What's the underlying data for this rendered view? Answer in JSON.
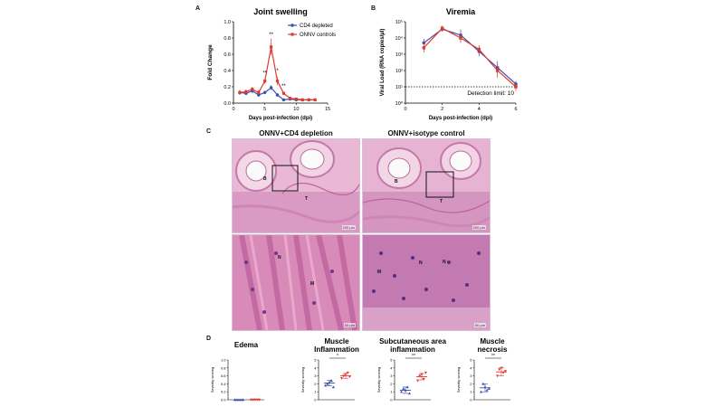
{
  "panels": {
    "a_label": "A",
    "b_label": "B",
    "c_label": "C",
    "d_label": "D"
  },
  "histology": {
    "left_title": "ONNV+CD4 depletion",
    "right_title": "ONNV+isotype control",
    "labels": {
      "B": "B",
      "T": "T",
      "M": "M",
      "N": "N"
    },
    "scale_top": "200 µm",
    "scale_bottom": "50 µm"
  },
  "chart_data": [
    {
      "id": "joint-swelling",
      "type": "line",
      "title": "Joint swelling",
      "xlabel": "Days post-infection (dpi)",
      "ylabel": "Fold Change",
      "xlim": [
        0,
        15
      ],
      "ylim": [
        0,
        1.0
      ],
      "xticks": [
        0,
        5,
        10,
        15
      ],
      "yticks": [
        0.0,
        0.2,
        0.4,
        0.6,
        0.8,
        1.0
      ],
      "legend_position": "top-right",
      "x": [
        1,
        2,
        3,
        4,
        5,
        6,
        7,
        8,
        9,
        10,
        11,
        12,
        13
      ],
      "series": [
        {
          "name": "CD4 depleted",
          "color": "#3b4fa8",
          "marker": "circle",
          "values": [
            0.13,
            0.12,
            0.15,
            0.1,
            0.13,
            0.19,
            0.1,
            0.04,
            0.05,
            0.04,
            0.04,
            0.04,
            0.04
          ],
          "errors": [
            0.03,
            0.02,
            0.03,
            0.02,
            0.02,
            0.03,
            0.02,
            0.01,
            0.01,
            0.01,
            0.01,
            0.01,
            0.01
          ]
        },
        {
          "name": "ONNV controls",
          "color": "#e0392e",
          "marker": "square",
          "values": [
            0.13,
            0.14,
            0.17,
            0.13,
            0.27,
            0.69,
            0.27,
            0.12,
            0.06,
            0.05,
            0.04,
            0.04,
            0.04
          ],
          "errors": [
            0.03,
            0.03,
            0.03,
            0.03,
            0.03,
            0.1,
            0.05,
            0.02,
            0.01,
            0.01,
            0.01,
            0.01,
            0.01
          ]
        }
      ],
      "annotations": [
        {
          "x": 5,
          "y": 0.35,
          "text": "**"
        },
        {
          "x": 6,
          "y": 0.82,
          "text": "**"
        },
        {
          "x": 7,
          "y": 0.38,
          "text": "*"
        },
        {
          "x": 8,
          "y": 0.19,
          "text": "**"
        }
      ]
    },
    {
      "id": "viremia",
      "type": "line",
      "title": "Viremia",
      "xlabel": "Days post-infection (dpi)",
      "ylabel": "Viral Load (RNA copies/µl)",
      "log_scale_y": true,
      "xlim": [
        0,
        6
      ],
      "ylim": [
        1,
        100000
      ],
      "xticks": [
        0,
        2,
        4,
        6
      ],
      "ytick_labels": [
        "10⁰",
        "10¹",
        "10²",
        "10³",
        "10⁴",
        "10⁵"
      ],
      "x": [
        1,
        2,
        3,
        4,
        5,
        6
      ],
      "series": [
        {
          "name": "CD4 depleted",
          "color": "#3b4fa8",
          "marker": "circle",
          "values": [
            5000,
            35000,
            15000,
            1500,
            150,
            15
          ],
          "errors_log": [
            0.25,
            0.15,
            0.35,
            0.3,
            0.4,
            0.2
          ]
        },
        {
          "name": "ONNV controls",
          "color": "#e0392e",
          "marker": "square",
          "values": [
            2500,
            40000,
            10000,
            2000,
            100,
            10
          ],
          "errors_log": [
            0.3,
            0.15,
            0.3,
            0.25,
            0.45,
            0.25
          ]
        }
      ],
      "reference_line": {
        "y": 10,
        "label": "Detection limit: 10"
      }
    },
    {
      "id": "edema",
      "type": "scatter",
      "title": "Edema",
      "ylabel": "Severity scoring",
      "ylim": [
        0,
        1.0
      ],
      "ytick_labels": [
        "0.0",
        "0.2",
        "0.4",
        "0.6",
        "0.8",
        "1.0"
      ],
      "groups": [
        {
          "color": "#3b4fa8",
          "points": [
            0,
            0,
            0,
            0,
            0
          ],
          "mean": 0
        },
        {
          "color": "#e0392e",
          "points": [
            0,
            0,
            0,
            0,
            0
          ],
          "mean": 0
        }
      ]
    },
    {
      "id": "muscle-inflammation",
      "type": "scatter",
      "title": "Muscle\nInflammation",
      "ylabel": "Severity scoring",
      "ylim": [
        0,
        5
      ],
      "ytick_labels": [
        "0",
        "1",
        "2",
        "3",
        "4",
        "5"
      ],
      "significance": "*",
      "groups": [
        {
          "color": "#3b4fa8",
          "points": [
            1.8,
            2.0,
            2.2,
            2.4,
            1.6
          ],
          "mean": 2.1,
          "sd": 0.35
        },
        {
          "color": "#e0392e",
          "points": [
            2.7,
            3.0,
            3.2,
            3.4,
            2.9
          ],
          "mean": 3.0,
          "sd": 0.3
        }
      ]
    },
    {
      "id": "subcutaneous-inflammation",
      "type": "scatter",
      "title": "Subcutaneous area\ninflammation",
      "ylabel": "Severity scoring",
      "ylim": [
        0,
        5
      ],
      "ytick_labels": [
        "0",
        "1",
        "2",
        "3",
        "4",
        "5"
      ],
      "significance": "**",
      "groups": [
        {
          "color": "#3b4fa8",
          "points": [
            1.0,
            1.4,
            1.2,
            1.6,
            0.8
          ],
          "mean": 1.2,
          "sd": 0.4
        },
        {
          "color": "#e0392e",
          "points": [
            2.4,
            3.0,
            3.2,
            2.6,
            3.4
          ],
          "mean": 2.9,
          "sd": 0.4
        }
      ]
    },
    {
      "id": "muscle-necrosis",
      "type": "scatter",
      "title": "Muscle\nnecrosis",
      "ylabel": "Severity scoring",
      "ylim": [
        0,
        5
      ],
      "ytick_labels": [
        "0",
        "1",
        "2",
        "3",
        "4",
        "5"
      ],
      "significance": "**",
      "groups": [
        {
          "color": "#3b4fa8",
          "points": [
            1.0,
            2.0,
            1.6,
            1.2,
            1.4
          ],
          "mean": 1.5,
          "sd": 0.5
        },
        {
          "color": "#e0392e",
          "points": [
            3.0,
            3.8,
            4.0,
            3.4,
            3.6
          ],
          "mean": 3.5,
          "sd": 0.5
        }
      ]
    }
  ]
}
